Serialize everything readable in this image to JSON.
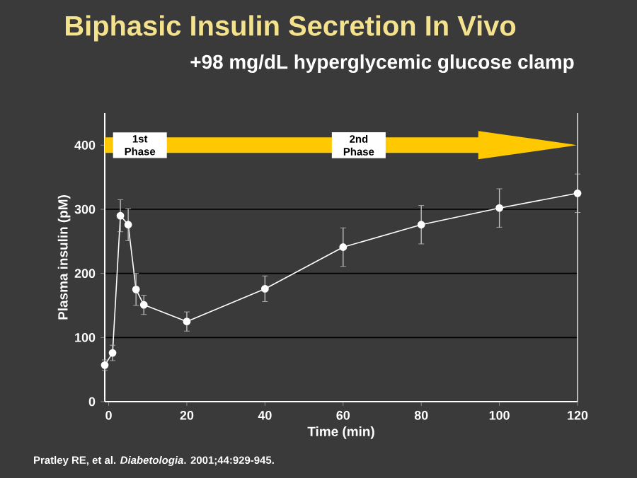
{
  "chart_data": {
    "type": "line",
    "title": "Biphasic Insulin Secretion In Vivo",
    "subtitle": "+98 mg/dL hyperglycemic glucose clamp",
    "xlabel": "Time (min)",
    "ylabel": "Plasma insulin (pM)",
    "series": [
      {
        "color": "#ffffff",
        "x": [
          -1,
          1,
          3,
          5,
          7,
          9,
          20,
          40,
          60,
          80,
          100,
          120
        ],
        "values": [
          57,
          76,
          290,
          276,
          175,
          151,
          125,
          176,
          241,
          276,
          302,
          325
        ],
        "errors": [
          8,
          12,
          25,
          25,
          25,
          15,
          15,
          20,
          30,
          30,
          30,
          30
        ]
      }
    ],
    "xlim": [
      -1,
      120
    ],
    "ylim": [
      0,
      450
    ],
    "xticks": [
      0,
      20,
      40,
      60,
      80,
      100,
      120
    ],
    "yticks": [
      0,
      100,
      200,
      300,
      400
    ],
    "grid": "y",
    "marker": "circle",
    "line_style": "solid",
    "annotations": [
      {
        "text": "1st Phase",
        "x": 8,
        "y": 400
      },
      {
        "text": "2nd Phase",
        "x": 64,
        "y": 400
      },
      "Pratley RE, et al. *Diabetologia*. 2001;44:929-945."
    ]
  }
}
